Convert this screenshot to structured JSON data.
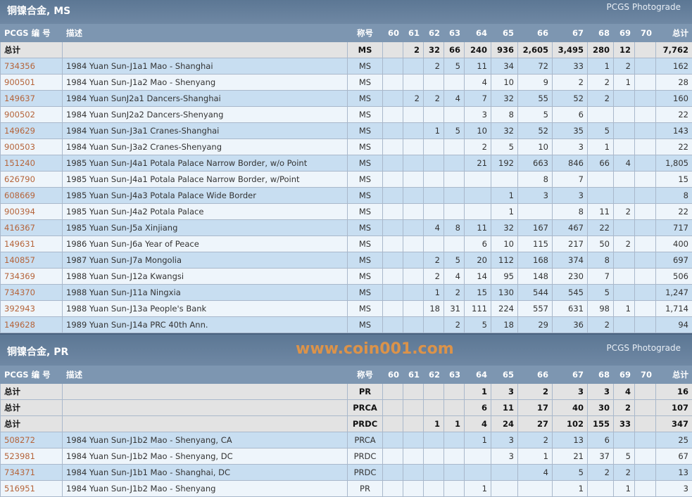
{
  "columns": [
    "PCGS 编 号",
    "描述",
    "称号",
    "60",
    "61",
    "62",
    "63",
    "64",
    "65",
    "66",
    "67",
    "68",
    "69",
    "70",
    "总计"
  ],
  "sections": [
    {
      "title": "铜镍合金, MS",
      "badge": "PCGS Photograde",
      "totals": [
        [
          "总计",
          "",
          "MS",
          "",
          "2",
          "32",
          "66",
          "240",
          "936",
          "2,605",
          "3,495",
          "280",
          "12",
          "",
          "7,762"
        ]
      ],
      "rows": [
        [
          "734356",
          "1984 Yuan Sun-J1a1 Mao - Shanghai",
          "MS",
          "",
          "",
          "2",
          "5",
          "11",
          "34",
          "72",
          "33",
          "1",
          "2",
          "",
          "162"
        ],
        [
          "900501",
          "1984 Yuan Sun-J1a2 Mao - Shenyang",
          "MS",
          "",
          "",
          "",
          "",
          "4",
          "10",
          "9",
          "2",
          "2",
          "1",
          "",
          "28"
        ],
        [
          "149637",
          "1984 Yuan SunJ2a1 Dancers-Shanghai",
          "MS",
          "",
          "2",
          "2",
          "4",
          "7",
          "32",
          "55",
          "52",
          "2",
          "",
          "",
          "160"
        ],
        [
          "900502",
          "1984 Yuan SunJ2a2 Dancers-Shenyang",
          "MS",
          "",
          "",
          "",
          "",
          "3",
          "8",
          "5",
          "6",
          "",
          "",
          "",
          "22"
        ],
        [
          "149629",
          "1984 Yuan Sun-J3a1 Cranes-Shanghai",
          "MS",
          "",
          "",
          "1",
          "5",
          "10",
          "32",
          "52",
          "35",
          "5",
          "",
          "",
          "143"
        ],
        [
          "900503",
          "1984 Yuan Sun-J3a2 Cranes-Shenyang",
          "MS",
          "",
          "",
          "",
          "",
          "2",
          "5",
          "10",
          "3",
          "1",
          "",
          "",
          "22"
        ],
        [
          "151240",
          "1985 Yuan Sun-J4a1 Potala Palace Narrow Border, w/o Point",
          "MS",
          "",
          "",
          "",
          "",
          "21",
          "192",
          "663",
          "846",
          "66",
          "4",
          "",
          "1,805"
        ],
        [
          "626790",
          "1985 Yuan Sun-J4a1 Potala Palace Narrow Border, w/Point",
          "MS",
          "",
          "",
          "",
          "",
          "",
          "",
          "8",
          "7",
          "",
          "",
          "",
          "15"
        ],
        [
          "608669",
          "1985 Yuan Sun-J4a3 Potala Palace Wide Border",
          "MS",
          "",
          "",
          "",
          "",
          "",
          "1",
          "3",
          "3",
          "",
          "",
          "",
          "8"
        ],
        [
          "900394",
          "1985 Yuan Sun-J4a2 Potala Palace",
          "MS",
          "",
          "",
          "",
          "",
          "",
          "1",
          "",
          "8",
          "11",
          "2",
          "",
          "22"
        ],
        [
          "416367",
          "1985 Yuan Sun-J5a Xinjiang",
          "MS",
          "",
          "",
          "4",
          "8",
          "11",
          "32",
          "167",
          "467",
          "22",
          "",
          "",
          "717"
        ],
        [
          "149631",
          "1986 Yuan Sun-J6a Year of Peace",
          "MS",
          "",
          "",
          "",
          "",
          "6",
          "10",
          "115",
          "217",
          "50",
          "2",
          "",
          "400"
        ],
        [
          "140857",
          "1987 Yuan Sun-J7a Mongolia",
          "MS",
          "",
          "",
          "2",
          "5",
          "20",
          "112",
          "168",
          "374",
          "8",
          "",
          "",
          "697"
        ],
        [
          "734369",
          "1988 Yuan Sun-J12a Kwangsi",
          "MS",
          "",
          "",
          "2",
          "4",
          "14",
          "95",
          "148",
          "230",
          "7",
          "",
          "",
          "506"
        ],
        [
          "734370",
          "1988 Yuan Sun-J11a Ningxia",
          "MS",
          "",
          "",
          "1",
          "2",
          "15",
          "130",
          "544",
          "545",
          "5",
          "",
          "",
          "1,247"
        ],
        [
          "392943",
          "1988 Yuan Sun-J13a People's Bank",
          "MS",
          "",
          "",
          "18",
          "31",
          "111",
          "224",
          "557",
          "631",
          "98",
          "1",
          "",
          "1,714"
        ],
        [
          "149628",
          "1989 Yuan Sun-J14a PRC 40th Ann.",
          "MS",
          "",
          "",
          "",
          "2",
          "5",
          "18",
          "29",
          "36",
          "2",
          "",
          "",
          "94"
        ]
      ]
    },
    {
      "title": "铜镍合金, PR",
      "badge": "PCGS Photograde",
      "totals": [
        [
          "总计",
          "",
          "PR",
          "",
          "",
          "",
          "",
          "1",
          "3",
          "2",
          "3",
          "3",
          "4",
          "",
          "16"
        ],
        [
          "总计",
          "",
          "PRCA",
          "",
          "",
          "",
          "",
          "6",
          "11",
          "17",
          "40",
          "30",
          "2",
          "",
          "107"
        ],
        [
          "总计",
          "",
          "PRDC",
          "",
          "",
          "1",
          "1",
          "4",
          "24",
          "27",
          "102",
          "155",
          "33",
          "",
          "347"
        ]
      ],
      "rows": [
        [
          "508272",
          "1984 Yuan Sun-J1b2 Mao - Shenyang, CA",
          "PRCA",
          "",
          "",
          "",
          "",
          "1",
          "3",
          "2",
          "13",
          "6",
          "",
          "",
          "25"
        ],
        [
          "523981",
          "1984 Yuan Sun-J1b2 Mao - Shenyang, DC",
          "PRDC",
          "",
          "",
          "",
          "",
          "",
          "3",
          "1",
          "21",
          "37",
          "5",
          "",
          "67"
        ],
        [
          "734371",
          "1984 Yuan Sun-J1b1 Mao - Shanghai, DC",
          "PRDC",
          "",
          "",
          "",
          "",
          "",
          "",
          "4",
          "5",
          "2",
          "2",
          "",
          "13"
        ],
        [
          "516951",
          "1984 Yuan Sun-J1b2 Mao - Shenyang",
          "PR",
          "",
          "",
          "",
          "",
          "1",
          "",
          "",
          "1",
          "",
          "1",
          "",
          "3"
        ]
      ]
    }
  ],
  "watermark": "www.coin001.com"
}
